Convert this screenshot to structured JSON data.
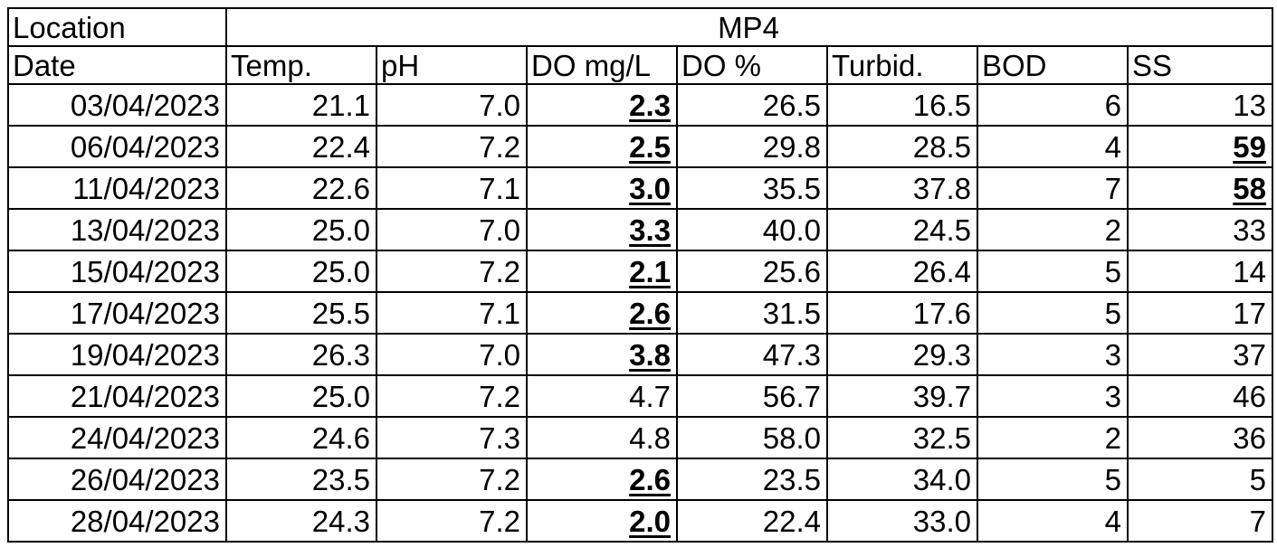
{
  "table": {
    "location_label": "Location",
    "location_value": "MP4",
    "columns": [
      "Date",
      "Temp.",
      "pH",
      "DO mg/L",
      "DO %",
      "Turbid.",
      "BOD",
      "SS"
    ],
    "rows": [
      {
        "cells": [
          "03/04/2023",
          "21.1",
          "7.0",
          "2.3",
          "26.5",
          "16.5",
          "6",
          "13"
        ],
        "highlight": [
          3
        ]
      },
      {
        "cells": [
          "06/04/2023",
          "22.4",
          "7.2",
          "2.5",
          "29.8",
          "28.5",
          "4",
          "59"
        ],
        "highlight": [
          3,
          7
        ]
      },
      {
        "cells": [
          "11/04/2023",
          "22.6",
          "7.1",
          "3.0",
          "35.5",
          "37.8",
          "7",
          "58"
        ],
        "highlight": [
          3,
          7
        ]
      },
      {
        "cells": [
          "13/04/2023",
          "25.0",
          "7.0",
          "3.3",
          "40.0",
          "24.5",
          "2",
          "33"
        ],
        "highlight": [
          3
        ]
      },
      {
        "cells": [
          "15/04/2023",
          "25.0",
          "7.2",
          "2.1",
          "25.6",
          "26.4",
          "5",
          "14"
        ],
        "highlight": [
          3
        ]
      },
      {
        "cells": [
          "17/04/2023",
          "25.5",
          "7.1",
          "2.6",
          "31.5",
          "17.6",
          "5",
          "17"
        ],
        "highlight": [
          3
        ]
      },
      {
        "cells": [
          "19/04/2023",
          "26.3",
          "7.0",
          "3.8",
          "47.3",
          "29.3",
          "3",
          "37"
        ],
        "highlight": [
          3
        ]
      },
      {
        "cells": [
          "21/04/2023",
          "25.0",
          "7.2",
          "4.7",
          "56.7",
          "39.7",
          "3",
          "46"
        ],
        "highlight": []
      },
      {
        "cells": [
          "24/04/2023",
          "24.6",
          "7.3",
          "4.8",
          "58.0",
          "32.5",
          "2",
          "36"
        ],
        "highlight": []
      },
      {
        "cells": [
          "26/04/2023",
          "23.5",
          "7.2",
          "2.6",
          "23.5",
          "34.0",
          "5",
          "5"
        ],
        "highlight": [
          3
        ]
      },
      {
        "cells": [
          "28/04/2023",
          "24.3",
          "7.2",
          "2.0",
          "22.4",
          "33.0",
          "4",
          "7"
        ],
        "highlight": [
          3
        ]
      }
    ]
  }
}
